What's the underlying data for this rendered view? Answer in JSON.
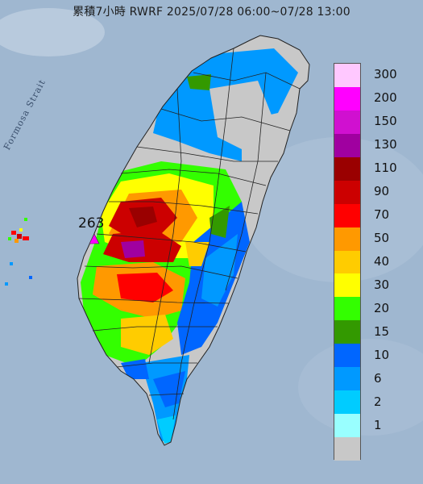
{
  "title": "累積7小時 RWRF 2025/07/28 06:00~07/28 13:00",
  "strait_label": "Formosa Strait",
  "max_value_label": "263",
  "legend": {
    "levels": [
      {
        "label": "300",
        "color": "#ffc8ff"
      },
      {
        "label": "200",
        "color": "#ff00ff"
      },
      {
        "label": "150",
        "color": "#d010d0"
      },
      {
        "label": "130",
        "color": "#a000a0"
      },
      {
        "label": "110",
        "color": "#9a0000"
      },
      {
        "label": "90",
        "color": "#cc0000"
      },
      {
        "label": "70",
        "color": "#ff0000"
      },
      {
        "label": "50",
        "color": "#ff9900"
      },
      {
        "label": "40",
        "color": "#ffcc00"
      },
      {
        "label": "30",
        "color": "#ffff00"
      },
      {
        "label": "20",
        "color": "#33ff00"
      },
      {
        "label": "15",
        "color": "#339900"
      },
      {
        "label": "10",
        "color": "#0066ff"
      },
      {
        "label": "6",
        "color": "#0099ff"
      },
      {
        "label": "2",
        "color": "#00ccff"
      },
      {
        "label": "1",
        "color": "#99ffff"
      },
      {
        "label": "",
        "color": "#c8c8c8"
      }
    ]
  },
  "colors": {
    "sea": "#9fb7d0",
    "land_base": "#c8c8c8",
    "county_lines": "#222222"
  }
}
